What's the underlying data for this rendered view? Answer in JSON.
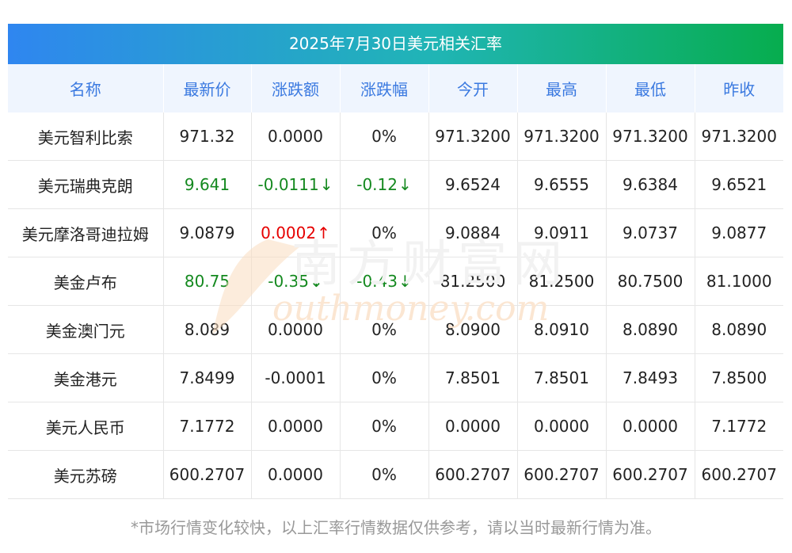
{
  "title": "2025年7月30日美元相关汇率",
  "headers": [
    "名称",
    "最新价",
    "涨跌额",
    "涨跌幅",
    "今开",
    "最高",
    "最低",
    "昨收"
  ],
  "rows": [
    {
      "name": "美元智利比索",
      "price": "971.32",
      "change": "0.0000",
      "change_pct": "0%",
      "open": "971.3200",
      "high": "971.3200",
      "low": "971.3200",
      "prev_close": "971.3200",
      "price_dir": "flat",
      "change_dir": "flat",
      "pct_dir": "flat"
    },
    {
      "name": "美元瑞典克朗",
      "price": "9.641",
      "change": "-0.0111",
      "change_pct": "-0.12",
      "open": "9.6524",
      "high": "9.6555",
      "low": "9.6384",
      "prev_close": "9.6521",
      "price_dir": "down",
      "change_dir": "down",
      "pct_dir": "down"
    },
    {
      "name": "美元摩洛哥迪拉姆",
      "price": "9.0879",
      "change": "0.0002",
      "change_pct": "0%",
      "open": "9.0884",
      "high": "9.0911",
      "low": "9.0737",
      "prev_close": "9.0877",
      "price_dir": "flat",
      "change_dir": "up",
      "pct_dir": "flat"
    },
    {
      "name": "美金卢布",
      "price": "80.75",
      "change": "-0.35",
      "change_pct": "-0.43",
      "open": "81.2500",
      "high": "81.2500",
      "low": "80.7500",
      "prev_close": "81.1000",
      "price_dir": "down",
      "change_dir": "down",
      "pct_dir": "down"
    },
    {
      "name": "美金澳门元",
      "price": "8.089",
      "change": "0.0000",
      "change_pct": "0%",
      "open": "8.0900",
      "high": "8.0910",
      "low": "8.0890",
      "prev_close": "8.0890",
      "price_dir": "flat",
      "change_dir": "flat",
      "pct_dir": "flat"
    },
    {
      "name": "美金港元",
      "price": "7.8499",
      "change": "-0.0001",
      "change_pct": "0%",
      "open": "7.8501",
      "high": "7.8501",
      "low": "7.8493",
      "prev_close": "7.8500",
      "price_dir": "flat",
      "change_dir": "flat",
      "pct_dir": "flat"
    },
    {
      "name": "美元人民币",
      "price": "7.1772",
      "change": "0.0000",
      "change_pct": "0%",
      "open": "0.0000",
      "high": "0.0000",
      "low": "0.0000",
      "prev_close": "7.1772",
      "price_dir": "flat",
      "change_dir": "flat",
      "pct_dir": "flat"
    },
    {
      "name": "美元苏磅",
      "price": "600.2707",
      "change": "0.0000",
      "change_pct": "0%",
      "open": "600.2707",
      "high": "600.2707",
      "low": "600.2707",
      "prev_close": "600.2707",
      "price_dir": "flat",
      "change_dir": "flat",
      "pct_dir": "flat"
    }
  ],
  "footer": "*市场行情变化较快，以上汇率行情数据仅供参考，请以当时最新行情为准。",
  "watermark": {
    "cn": "南方财富网",
    "en": "outhmoney.com"
  },
  "colors": {
    "up": "#e60000",
    "down": "#14891f",
    "header_text": "#3a79e0",
    "title_start": "#2f86f0",
    "title_end": "#07ad4e"
  },
  "arrows": {
    "up": "↑",
    "down": "↓"
  }
}
